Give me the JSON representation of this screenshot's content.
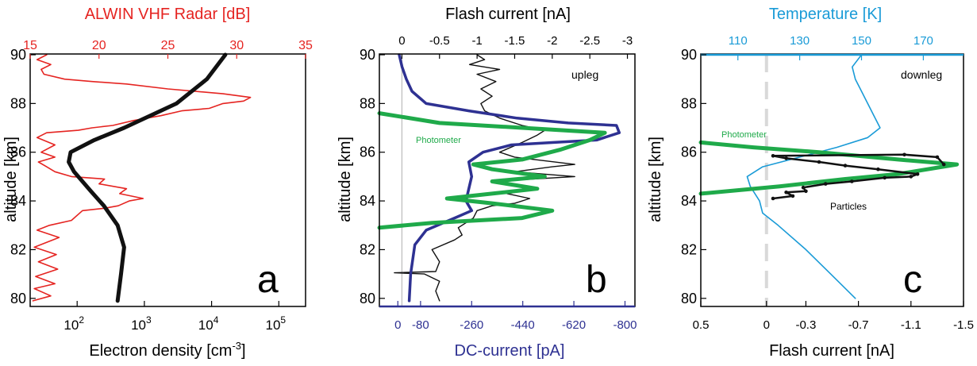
{
  "colors": {
    "radar": "#e52421",
    "electron": "#111111",
    "flash": "#111111",
    "dc_current": "#2e3192",
    "photometer": "#1faa4a",
    "temperature": "#1a9bd7",
    "zero_line": "#bbbbbb"
  },
  "chart_data": [
    {
      "panel_label": "a",
      "type": "line",
      "ylabel": "altitude  [km]",
      "ylim": [
        79.7,
        90.0
      ],
      "yticks": [
        "80",
        "82",
        "84",
        "86",
        "88",
        "90"
      ],
      "top_axis": {
        "label": "ALWIN VHF Radar [dB]",
        "ticks": [
          "15",
          "20",
          "25",
          "30",
          "35"
        ],
        "range": [
          15,
          35
        ]
      },
      "bottom_axis": {
        "label": "Electron density [cm",
        "label_sup": "-3",
        "label_end": "]",
        "scale": "log",
        "ticks": [
          "10",
          "10",
          "10",
          "10"
        ],
        "tick_sups": [
          "2",
          "3",
          "4",
          "5"
        ],
        "range": [
          20,
          250000
        ]
      },
      "series": [
        {
          "role": "radar_db",
          "axis": "top",
          "points": [
            [
              15.2,
              79.9
            ],
            [
              16.5,
              80.1
            ],
            [
              15.3,
              80.4
            ],
            [
              16.8,
              80.6
            ],
            [
              15.4,
              80.9
            ],
            [
              17.0,
              81.2
            ],
            [
              15.6,
              81.5
            ],
            [
              16.9,
              81.8
            ],
            [
              15.3,
              82.1
            ],
            [
              17.1,
              82.5
            ],
            [
              15.5,
              82.8
            ],
            [
              16.4,
              83.0
            ],
            [
              18.0,
              83.2
            ],
            [
              18.8,
              83.6
            ],
            [
              20.4,
              83.7
            ],
            [
              21.4,
              83.8
            ],
            [
              22.2,
              84.0
            ],
            [
              23.2,
              84.1
            ],
            [
              21.5,
              84.3
            ],
            [
              22.0,
              84.5
            ],
            [
              20.0,
              84.7
            ],
            [
              20.4,
              84.9
            ],
            [
              18.0,
              85.0
            ],
            [
              16.8,
              85.2
            ],
            [
              16.2,
              85.4
            ],
            [
              15.6,
              85.6
            ],
            [
              16.8,
              85.8
            ],
            [
              15.8,
              86.0
            ],
            [
              16.8,
              86.3
            ],
            [
              15.5,
              86.6
            ],
            [
              16.2,
              86.8
            ],
            [
              18.5,
              86.9
            ],
            [
              19.5,
              87.0
            ],
            [
              21.0,
              87.1
            ],
            [
              22.5,
              87.3
            ],
            [
              24.5,
              87.5
            ],
            [
              26.0,
              87.7
            ],
            [
              28.0,
              87.8
            ],
            [
              29.0,
              88.0
            ],
            [
              30.5,
              88.1
            ],
            [
              31.0,
              88.25
            ],
            [
              29.0,
              88.4
            ],
            [
              25.0,
              88.6
            ],
            [
              22.0,
              88.8
            ],
            [
              19.5,
              88.9
            ],
            [
              17.5,
              89.0
            ],
            [
              16.0,
              89.2
            ],
            [
              15.8,
              89.4
            ],
            [
              16.5,
              89.6
            ],
            [
              15.5,
              89.8
            ],
            [
              16.2,
              90.0
            ]
          ]
        },
        {
          "role": "electron_density",
          "axis": "bottom",
          "points": [
            [
              400,
              79.9
            ],
            [
              450,
              81
            ],
            [
              500,
              82.1
            ],
            [
              400,
              83
            ],
            [
              250,
              83.8
            ],
            [
              160,
              84.4
            ],
            [
              90,
              85.2
            ],
            [
              75,
              85.6
            ],
            [
              80,
              86.0
            ],
            [
              180,
              86.5
            ],
            [
              500,
              87.0
            ],
            [
              3000,
              88.0
            ],
            [
              8500,
              89.0
            ],
            [
              16000,
              90.0
            ]
          ]
        }
      ]
    },
    {
      "panel_label": "b",
      "type": "line",
      "ylabel": "altitude  [km]",
      "ylim": [
        79.7,
        90.0
      ],
      "yticks": [
        "80",
        "82",
        "84",
        "86",
        "88",
        "90"
      ],
      "top_axis": {
        "label": "Flash current  [nA]",
        "ticks": [
          "0",
          "-0.5",
          "-1",
          "-1.5",
          "-2",
          "-2.5",
          "-3"
        ],
        "values": [
          0,
          -0.5,
          -1,
          -1.5,
          -2,
          -2.5,
          -3
        ],
        "range": [
          0.3,
          -3.1
        ]
      },
      "bottom_axis": {
        "label": "DC-current [pA]",
        "ticks": [
          "0",
          "-80",
          "-260",
          "-440",
          "-620",
          "-800"
        ],
        "values": [
          0,
          -80,
          -260,
          -440,
          -620,
          -800
        ],
        "range": [
          65,
          -835
        ]
      },
      "annotations": [
        "upleg",
        "Photometer"
      ],
      "series": [
        {
          "role": "flash_current",
          "axis": "top",
          "points": [
            [
              -0.5,
              79.9
            ],
            [
              -0.45,
              80.3
            ],
            [
              -0.5,
              80.7
            ],
            [
              -0.3,
              81.0
            ],
            [
              0.1,
              81.05
            ],
            [
              -0.45,
              81.1
            ],
            [
              -0.5,
              81.5
            ],
            [
              -0.4,
              82.0
            ],
            [
              -0.7,
              82.4
            ],
            [
              -0.8,
              82.6
            ],
            [
              -0.75,
              82.9
            ],
            [
              -0.95,
              83.3
            ],
            [
              -1.0,
              83.6
            ],
            [
              -1.2,
              83.8
            ],
            [
              -1.5,
              83.9
            ],
            [
              -1.7,
              84.1
            ],
            [
              -1.4,
              84.3
            ],
            [
              -1.8,
              84.5
            ],
            [
              -1.2,
              84.8
            ],
            [
              -2.3,
              85.0
            ],
            [
              -1.5,
              85.2
            ],
            [
              -2.0,
              85.4
            ],
            [
              -2.3,
              85.5
            ],
            [
              -1.5,
              85.8
            ],
            [
              -1.3,
              86.0
            ],
            [
              -1.6,
              86.4
            ],
            [
              -1.8,
              86.7
            ],
            [
              -1.9,
              86.9
            ],
            [
              -1.6,
              87.1
            ],
            [
              -1.3,
              87.4
            ],
            [
              -1.1,
              87.7
            ],
            [
              -1.05,
              88.0
            ],
            [
              -1.2,
              88.3
            ],
            [
              -1.05,
              88.6
            ],
            [
              -1.25,
              88.9
            ],
            [
              -1.0,
              89.2
            ],
            [
              -1.3,
              89.4
            ],
            [
              -0.9,
              89.6
            ],
            [
              -1.1,
              89.8
            ],
            [
              -1.0,
              90.0
            ]
          ]
        },
        {
          "role": "dc_current",
          "axis": "bottom",
          "points": [
            [
              -40,
              79.9
            ],
            [
              -45,
              81
            ],
            [
              -60,
              82.2
            ],
            [
              -100,
              82.8
            ],
            [
              -200,
              83.3
            ],
            [
              -260,
              83.6
            ],
            [
              -240,
              84.0
            ],
            [
              -250,
              84.5
            ],
            [
              -260,
              85.0
            ],
            [
              -250,
              85.6
            ],
            [
              -300,
              86.0
            ],
            [
              -400,
              86.3
            ],
            [
              -550,
              86.4
            ],
            [
              -700,
              86.5
            ],
            [
              -780,
              86.8
            ],
            [
              -770,
              87.1
            ],
            [
              -600,
              87.2
            ],
            [
              -420,
              87.4
            ],
            [
              -250,
              87.7
            ],
            [
              -100,
              88.0
            ],
            [
              -50,
              88.5
            ],
            [
              -30,
              89.0
            ],
            [
              -15,
              89.5
            ],
            [
              -5,
              90.0
            ]
          ]
        },
        {
          "role": "photometer",
          "axis": "top",
          "points": [
            [
              0.3,
              82.9
            ],
            [
              -0.4,
              83.1
            ],
            [
              -1.6,
              83.3
            ],
            [
              -2.0,
              83.6
            ],
            [
              -1.2,
              83.9
            ],
            [
              -0.6,
              84.1
            ],
            [
              -1.8,
              84.5
            ],
            [
              -1.2,
              84.8
            ],
            [
              -1.9,
              85.0
            ],
            [
              -1.2,
              85.3
            ],
            [
              -0.95,
              85.5
            ],
            [
              -1.6,
              85.7
            ],
            [
              -2.1,
              86.1
            ],
            [
              -2.5,
              86.5
            ],
            [
              -2.7,
              86.8
            ],
            [
              -1.6,
              87.0
            ],
            [
              -0.5,
              87.2
            ],
            [
              0.3,
              87.6
            ]
          ]
        }
      ]
    },
    {
      "panel_label": "c",
      "type": "line",
      "ylabel": "altitude  [km]",
      "ylim": [
        79.7,
        90.0
      ],
      "yticks": [
        "80",
        "82",
        "84",
        "86",
        "88",
        "90"
      ],
      "top_axis": {
        "label": "Temperature [K]",
        "ticks": [
          "110",
          "130",
          "150",
          "170"
        ],
        "values": [
          110,
          130,
          150,
          170
        ],
        "range": [
          98,
          183
        ]
      },
      "bottom_axis": {
        "label": "Flash current [nA]",
        "ticks": [
          "0.5",
          "0",
          "-0.3",
          "-0.7",
          "-1.1",
          "-1.5"
        ],
        "values": [
          0.5,
          0,
          -0.3,
          -0.7,
          -1.1,
          -1.5
        ],
        "range": [
          0.5,
          -1.5
        ]
      },
      "annotations": [
        "downleg",
        "Photometer",
        "Particles"
      ],
      "series": [
        {
          "role": "temperature",
          "axis": "top",
          "points": [
            [
              148,
              80.0
            ],
            [
              140,
              81.0
            ],
            [
              132,
              82.0
            ],
            [
              123,
              83.0
            ],
            [
              118,
              83.5
            ],
            [
              117,
              84.0
            ],
            [
              114,
              84.6
            ],
            [
              113,
              85.0
            ],
            [
              118,
              85.4
            ],
            [
              130,
              85.8
            ],
            [
              142,
              86.2
            ],
            [
              152,
              86.6
            ],
            [
              156,
              87.0
            ],
            [
              154,
              87.5
            ],
            [
              152,
              88.0
            ],
            [
              150,
              88.5
            ],
            [
              148,
              89.0
            ],
            [
              147,
              89.5
            ],
            [
              150,
              90.0
            ]
          ]
        },
        {
          "role": "photometer",
          "axis": "bottom",
          "points": [
            [
              0.5,
              84.3
            ],
            [
              -0.1,
              84.6
            ],
            [
              -0.6,
              84.9
            ],
            [
              -1.0,
              85.1
            ],
            [
              -1.45,
              85.5
            ],
            [
              -1.0,
              85.7
            ],
            [
              -0.4,
              86.0
            ],
            [
              0.1,
              86.2
            ],
            [
              0.5,
              86.4
            ]
          ]
        },
        {
          "role": "particles",
          "axis": "bottom",
          "points": [
            [
              -0.05,
              84.1
            ],
            [
              -0.2,
              84.2
            ],
            [
              -0.15,
              84.35
            ],
            [
              -0.3,
              84.4
            ],
            [
              -0.28,
              84.55
            ],
            [
              -0.45,
              84.7
            ],
            [
              -0.65,
              84.8
            ],
            [
              -0.9,
              84.95
            ],
            [
              -1.1,
              85.0
            ],
            [
              -1.15,
              85.1
            ],
            [
              -0.85,
              85.3
            ],
            [
              -0.6,
              85.45
            ],
            [
              -0.4,
              85.6
            ],
            [
              -0.15,
              85.75
            ],
            [
              -0.05,
              85.85
            ],
            [
              -1.05,
              85.9
            ],
            [
              -1.3,
              85.8
            ],
            [
              -1.35,
              85.5
            ]
          ]
        }
      ]
    }
  ]
}
